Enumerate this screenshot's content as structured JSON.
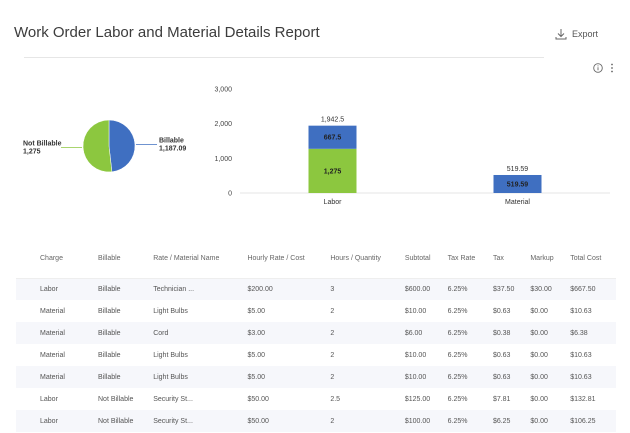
{
  "header": {
    "title": "Work Order Labor and Material Details Report",
    "export_label": "Export"
  },
  "chart_data": [
    {
      "type": "pie",
      "slices": [
        {
          "label": "Billable",
          "value_label": "1,187.09",
          "value": 1187.09,
          "color": "#3f6fc1"
        },
        {
          "label": "Not Billable",
          "value_label": "1,275",
          "value": 1275,
          "color": "#8cc73f"
        }
      ]
    },
    {
      "type": "bar",
      "stacked": true,
      "categories": [
        "Labor",
        "Material"
      ],
      "ylim": [
        0,
        3000
      ],
      "yticks": [
        "0",
        "1,000",
        "2,000",
        "3,000"
      ],
      "series": [
        {
          "color": "#8cc73f",
          "values": [
            1275,
            0
          ],
          "labels": [
            "1,275",
            ""
          ]
        },
        {
          "color": "#3f6fc1",
          "values": [
            667.5,
            519.59
          ],
          "labels": [
            "667.5",
            "519.59"
          ]
        }
      ],
      "totals": [
        "1,942.5",
        "519.59"
      ]
    }
  ],
  "table": {
    "columns": [
      "Charge",
      "Billable",
      "Rate / Material Name",
      "Hourly Rate / Cost",
      "Hours / Quantity",
      "Subtotal",
      "Tax Rate",
      "Tax",
      "Markup",
      "Total Cost"
    ],
    "rows": [
      [
        "Labor",
        "Billable",
        "Technician ...",
        "$200.00",
        "3",
        "$600.00",
        "6.25%",
        "$37.50",
        "$30.00",
        "$667.50"
      ],
      [
        "Material",
        "Billable",
        "Light Bulbs",
        "$5.00",
        "2",
        "$10.00",
        "6.25%",
        "$0.63",
        "$0.00",
        "$10.63"
      ],
      [
        "Material",
        "Billable",
        "Cord",
        "$3.00",
        "2",
        "$6.00",
        "6.25%",
        "$0.38",
        "$0.00",
        "$6.38"
      ],
      [
        "Material",
        "Billable",
        "Light Bulbs",
        "$5.00",
        "2",
        "$10.00",
        "6.25%",
        "$0.63",
        "$0.00",
        "$10.63"
      ],
      [
        "Material",
        "Billable",
        "Light Bulbs",
        "$5.00",
        "2",
        "$10.00",
        "6.25%",
        "$0.63",
        "$0.00",
        "$10.63"
      ],
      [
        "Labor",
        "Not Billable",
        "Security St...",
        "$50.00",
        "2.5",
        "$125.00",
        "6.25%",
        "$7.81",
        "$0.00",
        "$132.81"
      ],
      [
        "Labor",
        "Not Billable",
        "Security St...",
        "$50.00",
        "2",
        "$100.00",
        "6.25%",
        "$6.25",
        "$0.00",
        "$106.25"
      ]
    ]
  }
}
